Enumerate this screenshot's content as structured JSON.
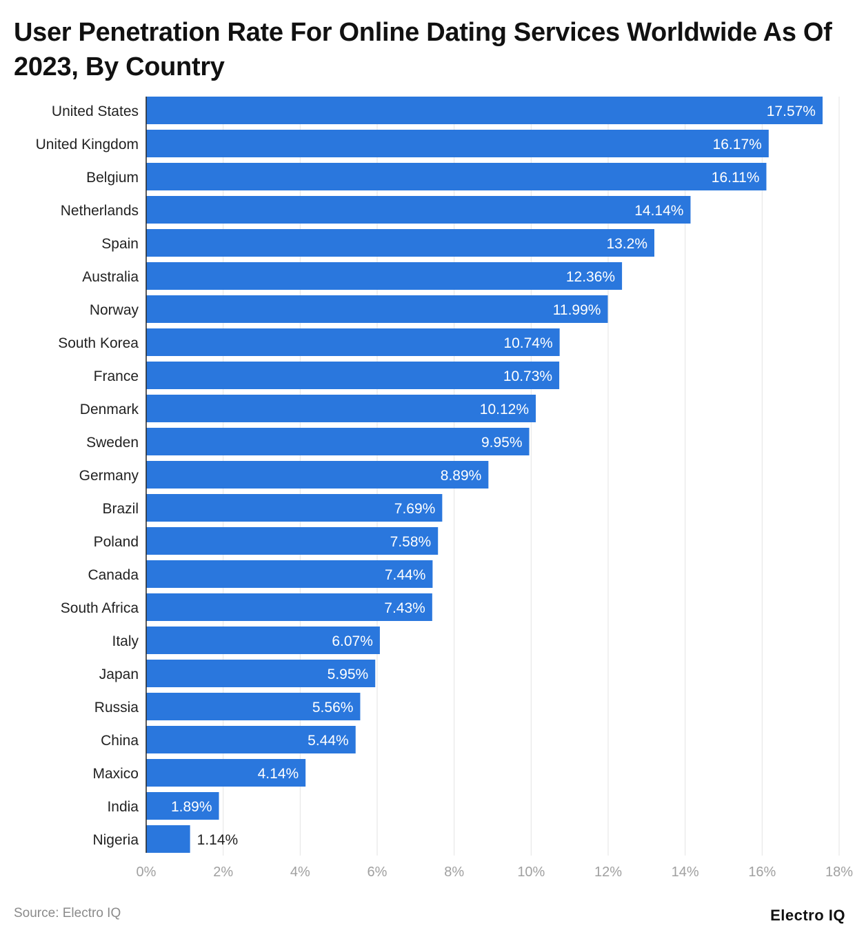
{
  "chart_data": {
    "type": "bar",
    "orientation": "horizontal",
    "title": "User Penetration Rate For Online Dating Services Worldwide As Of 2023, By Country",
    "categories": [
      "United States",
      "United Kingdom",
      "Belgium",
      "Netherlands",
      "Spain",
      "Australia",
      "Norway",
      "South Korea",
      "France",
      "Denmark",
      "Sweden",
      "Germany",
      "Brazil",
      "Poland",
      "Canada",
      "South Africa",
      "Italy",
      "Japan",
      "Russia",
      "China",
      "Maxico",
      "India",
      "Nigeria"
    ],
    "values": [
      17.57,
      16.17,
      16.11,
      14.14,
      13.2,
      12.36,
      11.99,
      10.74,
      10.73,
      10.12,
      9.95,
      8.89,
      7.69,
      7.58,
      7.44,
      7.43,
      6.07,
      5.95,
      5.56,
      5.44,
      4.14,
      1.89,
      1.14
    ],
    "data_labels": [
      "17.57%",
      "16.17%",
      "16.11%",
      "14.14%",
      "13.2%",
      "12.36%",
      "11.99%",
      "10.74%",
      "10.73%",
      "10.12%",
      "9.95%",
      "8.89%",
      "7.69%",
      "7.58%",
      "7.44%",
      "7.43%",
      "6.07%",
      "5.95%",
      "5.56%",
      "5.44%",
      "4.14%",
      "1.89%",
      "1.14%"
    ],
    "xlim": [
      0,
      18
    ],
    "x_ticks": [
      "0%",
      "2%",
      "4%",
      "6%",
      "8%",
      "10%",
      "12%",
      "14%",
      "16%",
      "18%"
    ],
    "grid": "vertical",
    "bar_color": "#2a77dd"
  },
  "footer": {
    "source": "Source: Electro IQ",
    "logo": "Electro IQ"
  }
}
